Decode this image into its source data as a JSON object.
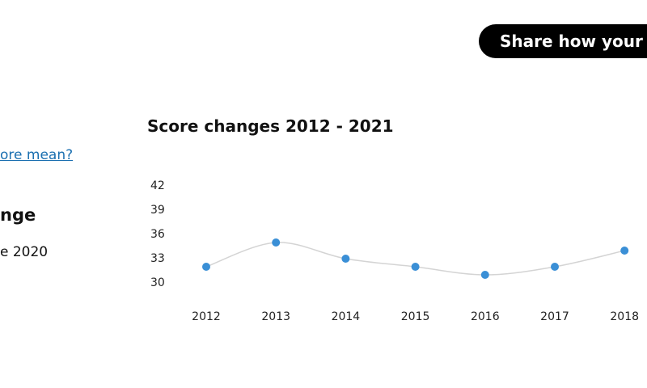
{
  "button": {
    "label": "Share how your c"
  },
  "sidebar": {
    "link": "ore mean?",
    "heading": "nge",
    "text": "e 2020"
  },
  "chart_data": {
    "type": "line",
    "title": "Score changes 2012 - 2021",
    "categories": [
      "2012",
      "2013",
      "2014",
      "2015",
      "2016",
      "2017",
      "2018"
    ],
    "values": [
      32,
      35,
      33,
      32,
      31,
      32,
      34
    ],
    "color": "#3a8fd6",
    "line_color": "#d4d4d4",
    "ylim": [
      30,
      42
    ],
    "yticks": [
      30,
      33,
      36,
      39,
      42
    ],
    "grid": false
  }
}
